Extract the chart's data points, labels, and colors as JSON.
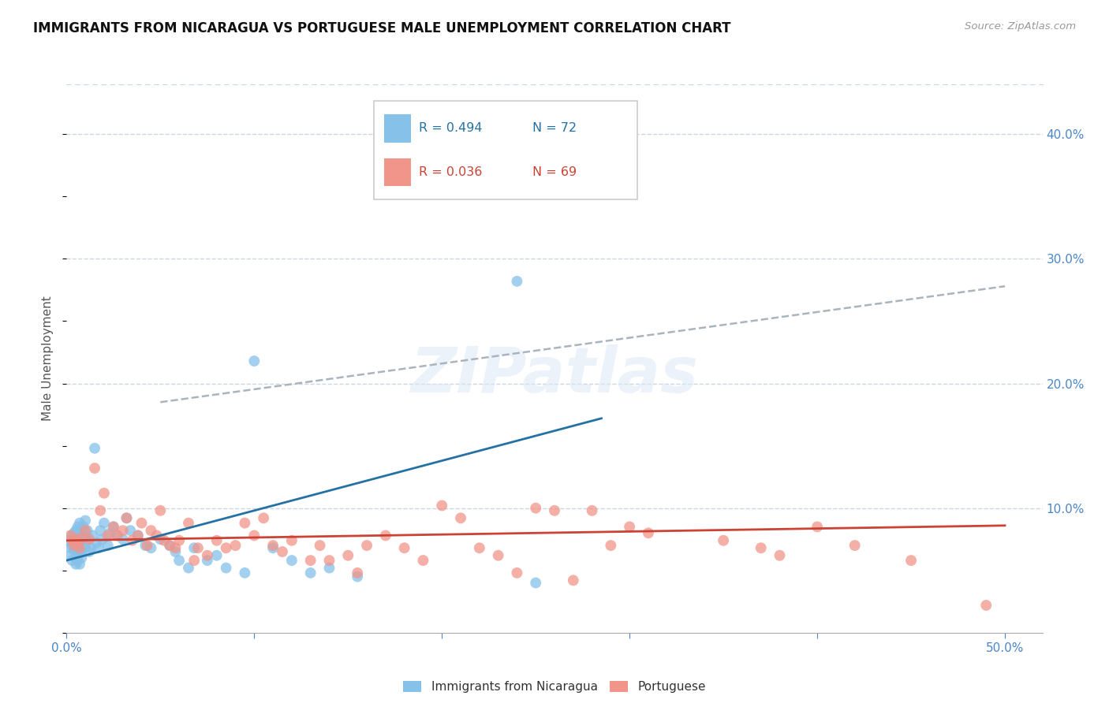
{
  "title": "IMMIGRANTS FROM NICARAGUA VS PORTUGUESE MALE UNEMPLOYMENT CORRELATION CHART",
  "source": "Source: ZipAtlas.com",
  "ylabel": "Male Unemployment",
  "right_yticks": [
    "40.0%",
    "30.0%",
    "20.0%",
    "10.0%"
  ],
  "right_ytick_vals": [
    0.4,
    0.3,
    0.2,
    0.1
  ],
  "xlim": [
    0.0,
    0.52
  ],
  "ylim": [
    0.0,
    0.44
  ],
  "legend_r1": "R = 0.494",
  "legend_n1": "N = 72",
  "legend_r2": "R = 0.036",
  "legend_n2": "N = 69",
  "blue_color": "#85c1e9",
  "pink_color": "#f1948a",
  "line_blue": "#2471a3",
  "line_pink": "#cb4335",
  "line_dashed_color": "#aab4be",
  "blue_scatter": [
    [
      0.001,
      0.074
    ],
    [
      0.002,
      0.068
    ],
    [
      0.002,
      0.062
    ],
    [
      0.003,
      0.078
    ],
    [
      0.003,
      0.058
    ],
    [
      0.003,
      0.07
    ],
    [
      0.004,
      0.08
    ],
    [
      0.004,
      0.072
    ],
    [
      0.004,
      0.066
    ],
    [
      0.005,
      0.082
    ],
    [
      0.005,
      0.075
    ],
    [
      0.005,
      0.06
    ],
    [
      0.005,
      0.055
    ],
    [
      0.006,
      0.085
    ],
    [
      0.006,
      0.076
    ],
    [
      0.006,
      0.068
    ],
    [
      0.006,
      0.062
    ],
    [
      0.006,
      0.058
    ],
    [
      0.007,
      0.088
    ],
    [
      0.007,
      0.078
    ],
    [
      0.007,
      0.072
    ],
    [
      0.007,
      0.065
    ],
    [
      0.007,
      0.055
    ],
    [
      0.008,
      0.082
    ],
    [
      0.008,
      0.075
    ],
    [
      0.008,
      0.065
    ],
    [
      0.008,
      0.06
    ],
    [
      0.009,
      0.085
    ],
    [
      0.009,
      0.078
    ],
    [
      0.009,
      0.068
    ],
    [
      0.01,
      0.09
    ],
    [
      0.01,
      0.078
    ],
    [
      0.01,
      0.07
    ],
    [
      0.011,
      0.082
    ],
    [
      0.012,
      0.075
    ],
    [
      0.012,
      0.065
    ],
    [
      0.013,
      0.068
    ],
    [
      0.014,
      0.078
    ],
    [
      0.015,
      0.148
    ],
    [
      0.016,
      0.072
    ],
    [
      0.017,
      0.068
    ],
    [
      0.018,
      0.082
    ],
    [
      0.019,
      0.075
    ],
    [
      0.02,
      0.088
    ],
    [
      0.022,
      0.07
    ],
    [
      0.023,
      0.08
    ],
    [
      0.025,
      0.085
    ],
    [
      0.027,
      0.078
    ],
    [
      0.03,
      0.075
    ],
    [
      0.032,
      0.092
    ],
    [
      0.034,
      0.082
    ],
    [
      0.038,
      0.078
    ],
    [
      0.042,
      0.07
    ],
    [
      0.045,
      0.068
    ],
    [
      0.05,
      0.075
    ],
    [
      0.055,
      0.07
    ],
    [
      0.058,
      0.065
    ],
    [
      0.06,
      0.058
    ],
    [
      0.065,
      0.052
    ],
    [
      0.068,
      0.068
    ],
    [
      0.075,
      0.058
    ],
    [
      0.08,
      0.062
    ],
    [
      0.085,
      0.052
    ],
    [
      0.095,
      0.048
    ],
    [
      0.1,
      0.218
    ],
    [
      0.11,
      0.068
    ],
    [
      0.12,
      0.058
    ],
    [
      0.13,
      0.048
    ],
    [
      0.14,
      0.052
    ],
    [
      0.155,
      0.045
    ],
    [
      0.24,
      0.282
    ],
    [
      0.25,
      0.04
    ]
  ],
  "pink_scatter": [
    [
      0.002,
      0.078
    ],
    [
      0.003,
      0.074
    ],
    [
      0.004,
      0.07
    ],
    [
      0.005,
      0.075
    ],
    [
      0.006,
      0.072
    ],
    [
      0.007,
      0.068
    ],
    [
      0.008,
      0.076
    ],
    [
      0.01,
      0.082
    ],
    [
      0.012,
      0.075
    ],
    [
      0.015,
      0.132
    ],
    [
      0.018,
      0.098
    ],
    [
      0.02,
      0.112
    ],
    [
      0.022,
      0.078
    ],
    [
      0.025,
      0.085
    ],
    [
      0.027,
      0.078
    ],
    [
      0.03,
      0.082
    ],
    [
      0.032,
      0.092
    ],
    [
      0.035,
      0.074
    ],
    [
      0.038,
      0.078
    ],
    [
      0.04,
      0.088
    ],
    [
      0.043,
      0.07
    ],
    [
      0.045,
      0.082
    ],
    [
      0.048,
      0.078
    ],
    [
      0.05,
      0.098
    ],
    [
      0.052,
      0.074
    ],
    [
      0.055,
      0.07
    ],
    [
      0.058,
      0.068
    ],
    [
      0.06,
      0.074
    ],
    [
      0.065,
      0.088
    ],
    [
      0.068,
      0.058
    ],
    [
      0.07,
      0.068
    ],
    [
      0.075,
      0.062
    ],
    [
      0.08,
      0.074
    ],
    [
      0.085,
      0.068
    ],
    [
      0.09,
      0.07
    ],
    [
      0.095,
      0.088
    ],
    [
      0.1,
      0.078
    ],
    [
      0.105,
      0.092
    ],
    [
      0.11,
      0.07
    ],
    [
      0.115,
      0.065
    ],
    [
      0.12,
      0.074
    ],
    [
      0.13,
      0.058
    ],
    [
      0.135,
      0.07
    ],
    [
      0.14,
      0.058
    ],
    [
      0.15,
      0.062
    ],
    [
      0.155,
      0.048
    ],
    [
      0.16,
      0.07
    ],
    [
      0.17,
      0.078
    ],
    [
      0.18,
      0.068
    ],
    [
      0.19,
      0.058
    ],
    [
      0.2,
      0.102
    ],
    [
      0.21,
      0.092
    ],
    [
      0.22,
      0.068
    ],
    [
      0.23,
      0.062
    ],
    [
      0.24,
      0.048
    ],
    [
      0.25,
      0.1
    ],
    [
      0.26,
      0.098
    ],
    [
      0.27,
      0.042
    ],
    [
      0.28,
      0.098
    ],
    [
      0.29,
      0.07
    ],
    [
      0.3,
      0.085
    ],
    [
      0.31,
      0.08
    ],
    [
      0.35,
      0.074
    ],
    [
      0.37,
      0.068
    ],
    [
      0.38,
      0.062
    ],
    [
      0.4,
      0.085
    ],
    [
      0.42,
      0.07
    ],
    [
      0.45,
      0.058
    ],
    [
      0.49,
      0.022
    ]
  ],
  "blue_line_x": [
    0.0,
    0.285
  ],
  "blue_line_y": [
    0.058,
    0.172
  ],
  "pink_line_x": [
    0.0,
    0.5
  ],
  "pink_line_y": [
    0.074,
    0.086
  ],
  "dashed_line_x": [
    0.05,
    0.5
  ],
  "dashed_line_y": [
    0.185,
    0.278
  ],
  "watermark": "ZIPatlas",
  "background_color": "#ffffff",
  "grid_color": "#c8d6e5",
  "border_color": "#c8d6e5"
}
